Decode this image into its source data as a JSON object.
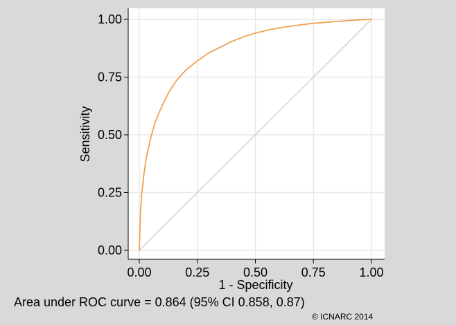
{
  "chart_data": {
    "type": "line",
    "xlabel": "1 - Specificity",
    "ylabel": "Sensitivity",
    "xlim": [
      0,
      1
    ],
    "ylim": [
      0,
      1
    ],
    "x_ticks": [
      "0.00",
      "0.25",
      "0.50",
      "0.75",
      "1.00"
    ],
    "y_ticks": [
      "0.00",
      "0.25",
      "0.50",
      "0.75",
      "1.00"
    ],
    "x_tick_values": [
      0,
      0.25,
      0.5,
      0.75,
      1
    ],
    "y_tick_values": [
      0,
      0.25,
      0.5,
      0.75,
      1
    ],
    "grid": true,
    "series": [
      {
        "color": "#f0a050",
        "x": [
          0,
          0.005,
          0.01,
          0.02,
          0.03,
          0.05,
          0.07,
          0.1,
          0.13,
          0.16,
          0.2,
          0.25,
          0.3,
          0.35,
          0.4,
          0.45,
          0.5,
          0.55,
          0.6,
          0.65,
          0.7,
          0.75,
          0.8,
          0.85,
          0.9,
          0.95,
          1
        ],
        "y": [
          0,
          0.16,
          0.24,
          0.33,
          0.4,
          0.49,
          0.56,
          0.63,
          0.69,
          0.735,
          0.78,
          0.82,
          0.855,
          0.88,
          0.905,
          0.925,
          0.94,
          0.953,
          0.963,
          0.97,
          0.977,
          0.983,
          0.987,
          0.991,
          0.995,
          0.998,
          1
        ]
      },
      {
        "color": "#cfcfcf",
        "x": [
          0,
          1
        ],
        "y": [
          0,
          1
        ]
      }
    ]
  },
  "footer": {
    "auc_text": "Area under ROC curve = 0.864 (95% CI 0.858, 0.87)",
    "copyright": "© ICNARC 2014"
  }
}
